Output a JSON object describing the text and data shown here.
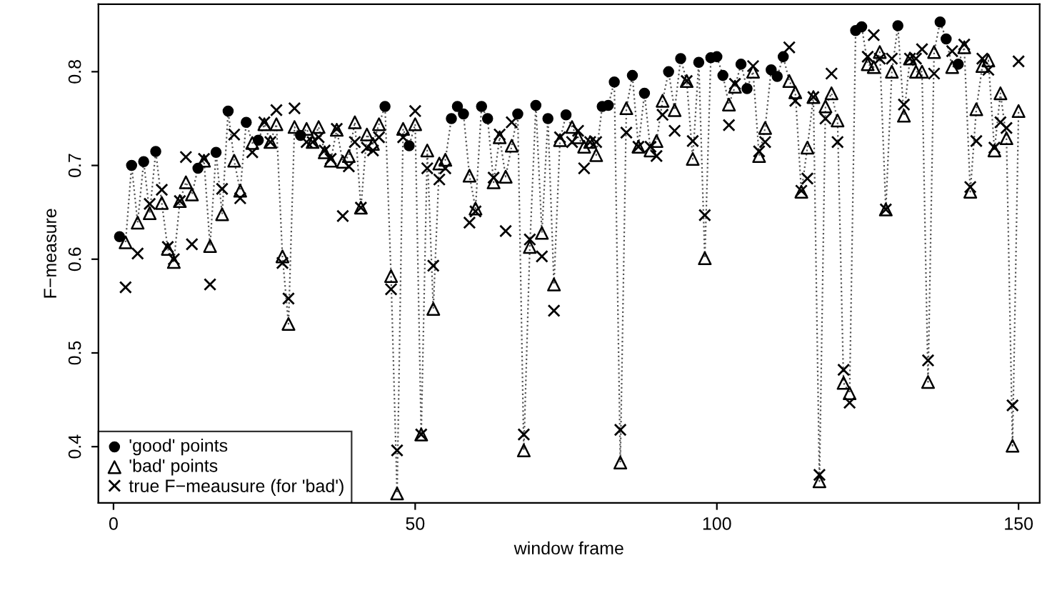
{
  "chart_data": {
    "type": "scatter",
    "xlabel": "window frame",
    "ylabel": "F−measure",
    "xlim": [
      -2.5,
      153.5
    ],
    "xticks": [
      0,
      50,
      100,
      150
    ],
    "ylim": [
      0.34,
      0.872
    ],
    "yticks": [
      0.4,
      0.5,
      0.6,
      0.7,
      0.8
    ],
    "grid": false,
    "legend": "bottom left",
    "series": [
      {
        "type": "line",
        "line_style": "dotted",
        "marker": "none",
        "color": "#555555",
        "x": [
          1,
          2,
          3,
          4,
          5,
          6,
          7,
          8,
          9,
          10,
          11,
          12,
          13,
          14,
          15,
          16,
          17,
          18,
          19,
          20,
          21,
          22,
          23,
          24,
          25,
          26,
          27,
          28,
          29,
          30,
          31,
          32,
          33,
          34,
          35,
          36,
          37,
          38,
          39,
          40,
          41,
          42,
          43,
          44,
          45,
          46,
          47,
          48,
          49,
          50,
          51,
          52,
          53,
          54,
          55,
          56,
          57,
          58,
          59,
          60,
          61,
          62,
          63,
          64,
          65,
          66,
          67,
          68,
          69,
          70,
          71,
          72,
          73,
          74,
          75,
          76,
          77,
          78,
          79,
          80,
          81,
          82,
          83,
          84,
          85,
          86,
          87,
          88,
          89,
          90,
          91,
          92,
          93,
          94,
          95,
          96,
          97,
          98,
          99,
          100,
          101,
          102,
          103,
          104,
          105,
          106,
          107,
          108,
          109,
          110,
          111,
          112,
          113,
          114,
          115,
          116,
          117,
          118,
          119,
          120,
          121,
          122,
          123,
          124,
          125,
          126,
          127,
          128,
          129,
          130,
          131,
          132,
          133,
          134,
          135,
          136,
          137,
          138,
          139,
          140,
          141,
          142,
          143,
          144,
          145,
          146,
          147,
          148,
          149,
          150
        ],
        "values": [
          0.624,
          0.618,
          0.7,
          0.639,
          0.704,
          0.649,
          0.715,
          0.66,
          0.611,
          0.597,
          0.662,
          0.682,
          0.669,
          0.697,
          0.705,
          0.614,
          0.714,
          0.648,
          0.758,
          0.705,
          0.673,
          0.746,
          0.724,
          0.727,
          0.744,
          0.725,
          0.744,
          0.603,
          0.531,
          0.741,
          0.732,
          0.739,
          0.725,
          0.741,
          0.714,
          0.705,
          0.738,
          0.704,
          0.71,
          0.746,
          0.655,
          0.733,
          0.723,
          0.744,
          0.763,
          0.582,
          0.35,
          0.739,
          0.721,
          0.744,
          0.413,
          0.716,
          0.547,
          0.702,
          0.706,
          0.75,
          0.763,
          0.755,
          0.689,
          0.654,
          0.763,
          0.75,
          0.682,
          0.73,
          0.688,
          0.721,
          0.755,
          0.396,
          0.613,
          0.764,
          0.628,
          0.75,
          0.573,
          0.727,
          0.754,
          0.741,
          0.73,
          0.72,
          0.725,
          0.711,
          0.763,
          0.764,
          0.789,
          0.383,
          0.761,
          0.796,
          0.72,
          0.777,
          0.716,
          0.726,
          0.769,
          0.8,
          0.759,
          0.814,
          0.79,
          0.707,
          0.81,
          0.601,
          0.815,
          0.816,
          0.796,
          0.765,
          0.784,
          0.808,
          0.782,
          0.8,
          0.71,
          0.74,
          0.802,
          0.795,
          0.816,
          0.79,
          0.778,
          0.672,
          0.719,
          0.773,
          0.363,
          0.763,
          0.777,
          0.748,
          0.468,
          0.457,
          0.844,
          0.848,
          0.808,
          0.805,
          0.821,
          0.653,
          0.8,
          0.849,
          0.753,
          0.814,
          0.8,
          0.8,
          0.469,
          0.821,
          0.853,
          0.835,
          0.805,
          0.808,
          0.826,
          0.672,
          0.76,
          0.806,
          0.812,
          0.716,
          0.777,
          0.729,
          0.401,
          0.758
        ]
      },
      {
        "name": "'good' points",
        "marker": "circle",
        "color": "#000000",
        "x": [
          1,
          3,
          5,
          7,
          14,
          17,
          19,
          22,
          24,
          31,
          45,
          49,
          56,
          57,
          58,
          61,
          62,
          67,
          70,
          72,
          75,
          81,
          82,
          83,
          86,
          88,
          92,
          94,
          97,
          99,
          100,
          101,
          104,
          105,
          109,
          110,
          111,
          123,
          124,
          130,
          137,
          138,
          140
        ],
        "values": [
          0.624,
          0.7,
          0.704,
          0.715,
          0.697,
          0.714,
          0.758,
          0.746,
          0.727,
          0.732,
          0.763,
          0.721,
          0.75,
          0.763,
          0.755,
          0.763,
          0.75,
          0.755,
          0.764,
          0.75,
          0.754,
          0.763,
          0.764,
          0.789,
          0.796,
          0.777,
          0.8,
          0.814,
          0.81,
          0.815,
          0.816,
          0.796,
          0.808,
          0.782,
          0.802,
          0.795,
          0.816,
          0.844,
          0.848,
          0.849,
          0.853,
          0.835,
          0.808
        ]
      },
      {
        "name": "'bad' points",
        "marker": "triangle",
        "color": "#000000",
        "x": [
          2,
          4,
          6,
          8,
          9,
          10,
          11,
          12,
          13,
          15,
          16,
          18,
          20,
          21,
          23,
          25,
          26,
          27,
          28,
          29,
          30,
          32,
          33,
          34,
          35,
          36,
          37,
          38,
          39,
          40,
          41,
          42,
          43,
          44,
          46,
          47,
          48,
          50,
          51,
          52,
          53,
          54,
          55,
          59,
          60,
          63,
          64,
          65,
          66,
          68,
          69,
          71,
          73,
          74,
          76,
          77,
          78,
          79,
          80,
          84,
          85,
          87,
          89,
          90,
          91,
          93,
          95,
          96,
          98,
          102,
          103,
          106,
          107,
          108,
          112,
          113,
          114,
          115,
          116,
          117,
          118,
          119,
          120,
          121,
          122,
          125,
          126,
          127,
          128,
          129,
          131,
          132,
          133,
          134,
          135,
          136,
          139,
          141,
          142,
          143,
          144,
          145,
          146,
          147,
          148,
          149,
          150
        ],
        "values": [
          0.618,
          0.639,
          0.649,
          0.66,
          0.611,
          0.597,
          0.662,
          0.682,
          0.669,
          0.705,
          0.614,
          0.648,
          0.705,
          0.673,
          0.724,
          0.744,
          0.725,
          0.744,
          0.603,
          0.531,
          0.741,
          0.739,
          0.725,
          0.741,
          0.714,
          0.705,
          0.738,
          0.704,
          0.71,
          0.746,
          0.655,
          0.733,
          0.723,
          0.744,
          0.582,
          0.35,
          0.739,
          0.744,
          0.413,
          0.716,
          0.547,
          0.702,
          0.706,
          0.689,
          0.654,
          0.682,
          0.73,
          0.688,
          0.721,
          0.396,
          0.613,
          0.628,
          0.573,
          0.727,
          0.741,
          0.73,
          0.72,
          0.725,
          0.711,
          0.383,
          0.761,
          0.72,
          0.716,
          0.726,
          0.769,
          0.759,
          0.79,
          0.707,
          0.601,
          0.765,
          0.784,
          0.8,
          0.71,
          0.74,
          0.79,
          0.778,
          0.672,
          0.719,
          0.773,
          0.363,
          0.763,
          0.777,
          0.748,
          0.468,
          0.457,
          0.808,
          0.805,
          0.821,
          0.653,
          0.8,
          0.753,
          0.814,
          0.8,
          0.8,
          0.469,
          0.821,
          0.805,
          0.826,
          0.672,
          0.76,
          0.806,
          0.812,
          0.716,
          0.777,
          0.729,
          0.401,
          0.758
        ]
      },
      {
        "name": "true F−meausure (for 'bad')",
        "marker": "cross",
        "color": "#000000",
        "x": [
          2,
          4,
          6,
          8,
          9,
          10,
          11,
          12,
          13,
          15,
          16,
          18,
          20,
          21,
          23,
          25,
          26,
          27,
          28,
          29,
          30,
          32,
          33,
          34,
          35,
          36,
          37,
          38,
          39,
          40,
          41,
          42,
          43,
          44,
          46,
          47,
          48,
          50,
          51,
          52,
          53,
          54,
          55,
          59,
          60,
          63,
          64,
          65,
          66,
          68,
          69,
          71,
          73,
          74,
          76,
          77,
          78,
          79,
          80,
          84,
          85,
          87,
          89,
          90,
          91,
          93,
          95,
          96,
          98,
          102,
          103,
          106,
          107,
          108,
          112,
          113,
          114,
          115,
          116,
          117,
          118,
          119,
          120,
          121,
          122,
          125,
          126,
          127,
          128,
          129,
          131,
          132,
          133,
          134,
          135,
          136,
          139,
          141,
          142,
          143,
          144,
          145,
          146,
          147,
          148,
          149,
          150
        ],
        "values": [
          0.57,
          0.606,
          0.659,
          0.674,
          0.613,
          0.6,
          0.662,
          0.709,
          0.616,
          0.707,
          0.573,
          0.675,
          0.733,
          0.665,
          0.714,
          0.746,
          0.725,
          0.759,
          0.596,
          0.558,
          0.761,
          0.725,
          0.725,
          0.73,
          0.716,
          0.707,
          0.739,
          0.646,
          0.699,
          0.725,
          0.655,
          0.719,
          0.716,
          0.73,
          0.568,
          0.396,
          0.73,
          0.758,
          0.413,
          0.697,
          0.593,
          0.685,
          0.697,
          0.639,
          0.651,
          0.687,
          0.733,
          0.63,
          0.746,
          0.413,
          0.621,
          0.603,
          0.545,
          0.73,
          0.725,
          0.737,
          0.697,
          0.725,
          0.725,
          0.418,
          0.735,
          0.72,
          0.72,
          0.71,
          0.754,
          0.737,
          0.79,
          0.726,
          0.647,
          0.743,
          0.787,
          0.806,
          0.715,
          0.725,
          0.826,
          0.769,
          0.673,
          0.686,
          0.773,
          0.37,
          0.75,
          0.798,
          0.725,
          0.482,
          0.447,
          0.816,
          0.839,
          0.814,
          0.653,
          0.814,
          0.765,
          0.814,
          0.814,
          0.824,
          0.492,
          0.798,
          0.822,
          0.829,
          0.677,
          0.726,
          0.814,
          0.802,
          0.719,
          0.746,
          0.74,
          0.444,
          0.811
        ]
      }
    ]
  }
}
